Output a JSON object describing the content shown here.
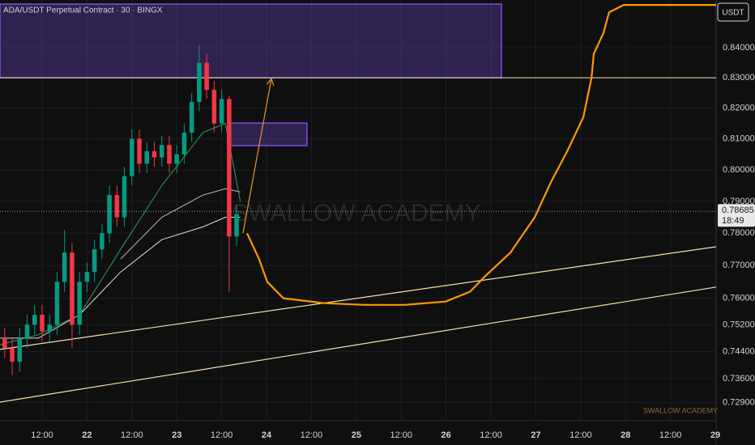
{
  "chart_data": {
    "type": "candlestick",
    "title": "ADA/USDT Perpetual Contract · 30 · BINGX",
    "currency": "USDT",
    "watermark": "SWALLOW ACADEMY",
    "footer_watermark": "SWALLOW ACADEMY",
    "log_scale": true,
    "grid": true,
    "xlim": [
      0.74,
      192.2
    ],
    "ylim": [
      0.7237,
      0.8562
    ],
    "yticks": [
      {
        "value": 0.84,
        "label": "0.84000"
      },
      {
        "value": 0.83,
        "label": "0.83000"
      },
      {
        "value": 0.82,
        "label": "0.82000"
      },
      {
        "value": 0.81,
        "label": "0.81000"
      },
      {
        "value": 0.8,
        "label": "0.80000"
      },
      {
        "value": 0.79,
        "label": "0.79000"
      },
      {
        "value": 0.78,
        "label": "0.78000"
      },
      {
        "value": 0.77,
        "label": "0.77000"
      },
      {
        "value": 0.76,
        "label": "0.76000"
      },
      {
        "value": 0.752,
        "label": "0.75200"
      },
      {
        "value": 0.744,
        "label": "0.74400"
      },
      {
        "value": 0.736,
        "label": "0.73600"
      },
      {
        "value": 0.729,
        "label": "0.72900"
      }
    ],
    "xticks": [
      {
        "value": 12,
        "label": "12:00"
      },
      {
        "value": 24,
        "label": "22"
      },
      {
        "value": 36,
        "label": "12:00"
      },
      {
        "value": 48,
        "label": "23"
      },
      {
        "value": 60,
        "label": "12:00"
      },
      {
        "value": 72,
        "label": "24"
      },
      {
        "value": 84,
        "label": "12:00"
      },
      {
        "value": 96,
        "label": "25"
      },
      {
        "value": 108,
        "label": "12:00"
      },
      {
        "value": 120,
        "label": "26"
      },
      {
        "value": 132,
        "label": "12:00"
      },
      {
        "value": 144,
        "label": "27"
      },
      {
        "value": 156,
        "label": "12:00"
      },
      {
        "value": 168,
        "label": "28"
      },
      {
        "value": 180,
        "label": "12:00"
      },
      {
        "value": 192,
        "label": "29"
      }
    ],
    "up_color": "#089981",
    "down_color": "#f23645",
    "candles": {
      "x": [
        2,
        4,
        6,
        8,
        10,
        12,
        14,
        16,
        18,
        20,
        22,
        24,
        26,
        28,
        30,
        32,
        34,
        36,
        38,
        40,
        42,
        44,
        46,
        48,
        50,
        52,
        54,
        56,
        58,
        60,
        62,
        64
      ],
      "open": [
        0.748,
        0.745,
        0.741,
        0.748,
        0.752,
        0.755,
        0.75,
        0.752,
        0.765,
        0.774,
        0.752,
        0.765,
        0.768,
        0.775,
        0.78,
        0.792,
        0.785,
        0.798,
        0.81,
        0.802,
        0.806,
        0.804,
        0.808,
        0.802,
        0.805,
        0.812,
        0.822,
        0.835,
        0.826,
        0.815,
        0.823,
        0.779
      ],
      "high": [
        0.751,
        0.748,
        0.751,
        0.755,
        0.758,
        0.758,
        0.755,
        0.768,
        0.781,
        0.777,
        0.768,
        0.771,
        0.778,
        0.783,
        0.795,
        0.795,
        0.801,
        0.813,
        0.813,
        0.809,
        0.809,
        0.811,
        0.811,
        0.808,
        0.815,
        0.825,
        0.841,
        0.838,
        0.829,
        0.826,
        0.824,
        0.789
      ],
      "low": [
        0.742,
        0.737,
        0.738,
        0.745,
        0.749,
        0.747,
        0.747,
        0.749,
        0.762,
        0.745,
        0.749,
        0.762,
        0.765,
        0.772,
        0.777,
        0.782,
        0.782,
        0.795,
        0.799,
        0.799,
        0.801,
        0.801,
        0.799,
        0.799,
        0.802,
        0.809,
        0.819,
        0.823,
        0.812,
        0.812,
        0.762,
        0.776
      ],
      "close": [
        0.745,
        0.741,
        0.748,
        0.752,
        0.755,
        0.75,
        0.752,
        0.765,
        0.774,
        0.752,
        0.765,
        0.768,
        0.775,
        0.78,
        0.792,
        0.785,
        0.798,
        0.81,
        0.802,
        0.806,
        0.804,
        0.808,
        0.802,
        0.805,
        0.812,
        0.822,
        0.835,
        0.826,
        0.815,
        0.823,
        0.779,
        0.786
      ]
    },
    "moving_averages": [
      {
        "color": "#e0e0e0",
        "x": [
          0.74,
          11,
          22,
          33,
          44,
          55,
          61,
          65
        ],
        "values": [
          0.748,
          0.748,
          0.755,
          0.768,
          0.778,
          0.782,
          0.785,
          0.785
        ]
      },
      {
        "color": "#bdbdbd",
        "x": [
          33,
          44,
          55,
          61,
          65
        ],
        "values": [
          0.772,
          0.785,
          0.792,
          0.794,
          0.793
        ]
      },
      {
        "color": "#2e9e5b",
        "x": [
          0.74,
          11,
          22,
          33,
          44,
          55,
          61,
          65
        ],
        "values": [
          0.746,
          0.749,
          0.755,
          0.775,
          0.795,
          0.812,
          0.815,
          0.79
        ]
      }
    ],
    "zones": [
      {
        "color": "#7b4fe0",
        "x": [
          0.74,
          134.8
        ],
        "values": [
          0.83,
          0.8548
        ]
      },
      {
        "color": "#7b4fe0",
        "x": [
          61.8,
          82.8
        ],
        "values": [
          0.8078,
          0.8151
        ]
      }
    ],
    "level": {
      "value": 0.83,
      "color": "#f5deb3"
    },
    "trendlines": [
      {
        "color": "#f5deb3",
        "x": [
          0.74,
          192.2
        ],
        "values": [
          0.7446,
          0.7758
        ]
      },
      {
        "color": "#f5deb3",
        "x": [
          0.74,
          192.2
        ],
        "values": [
          0.7291,
          0.7634
        ]
      }
    ],
    "arrow": {
      "color": "#e08a2e",
      "x": [
        65.7,
        73.3
      ],
      "values": [
        0.78,
        0.8297
      ]
    },
    "projection": {
      "color": "#ff9800",
      "x": [
        66.8,
        70.0,
        72.2,
        76.5,
        87.4,
        98.2,
        109.0,
        119.9,
        126.4,
        130.7,
        137.2,
        143.7,
        148.0,
        152.4,
        156.7,
        158.9,
        159.5,
        162.1,
        163.6,
        167.5,
        192.2
      ],
      "values": [
        0.78,
        0.772,
        0.765,
        0.76,
        0.7585,
        0.758,
        0.758,
        0.759,
        0.762,
        0.767,
        0.774,
        0.785,
        0.796,
        0.806,
        0.817,
        0.83,
        0.838,
        0.845,
        0.852,
        0.8545,
        0.8545
      ]
    },
    "last_price": {
      "value": 0.78685,
      "countdown": "18:49"
    }
  }
}
